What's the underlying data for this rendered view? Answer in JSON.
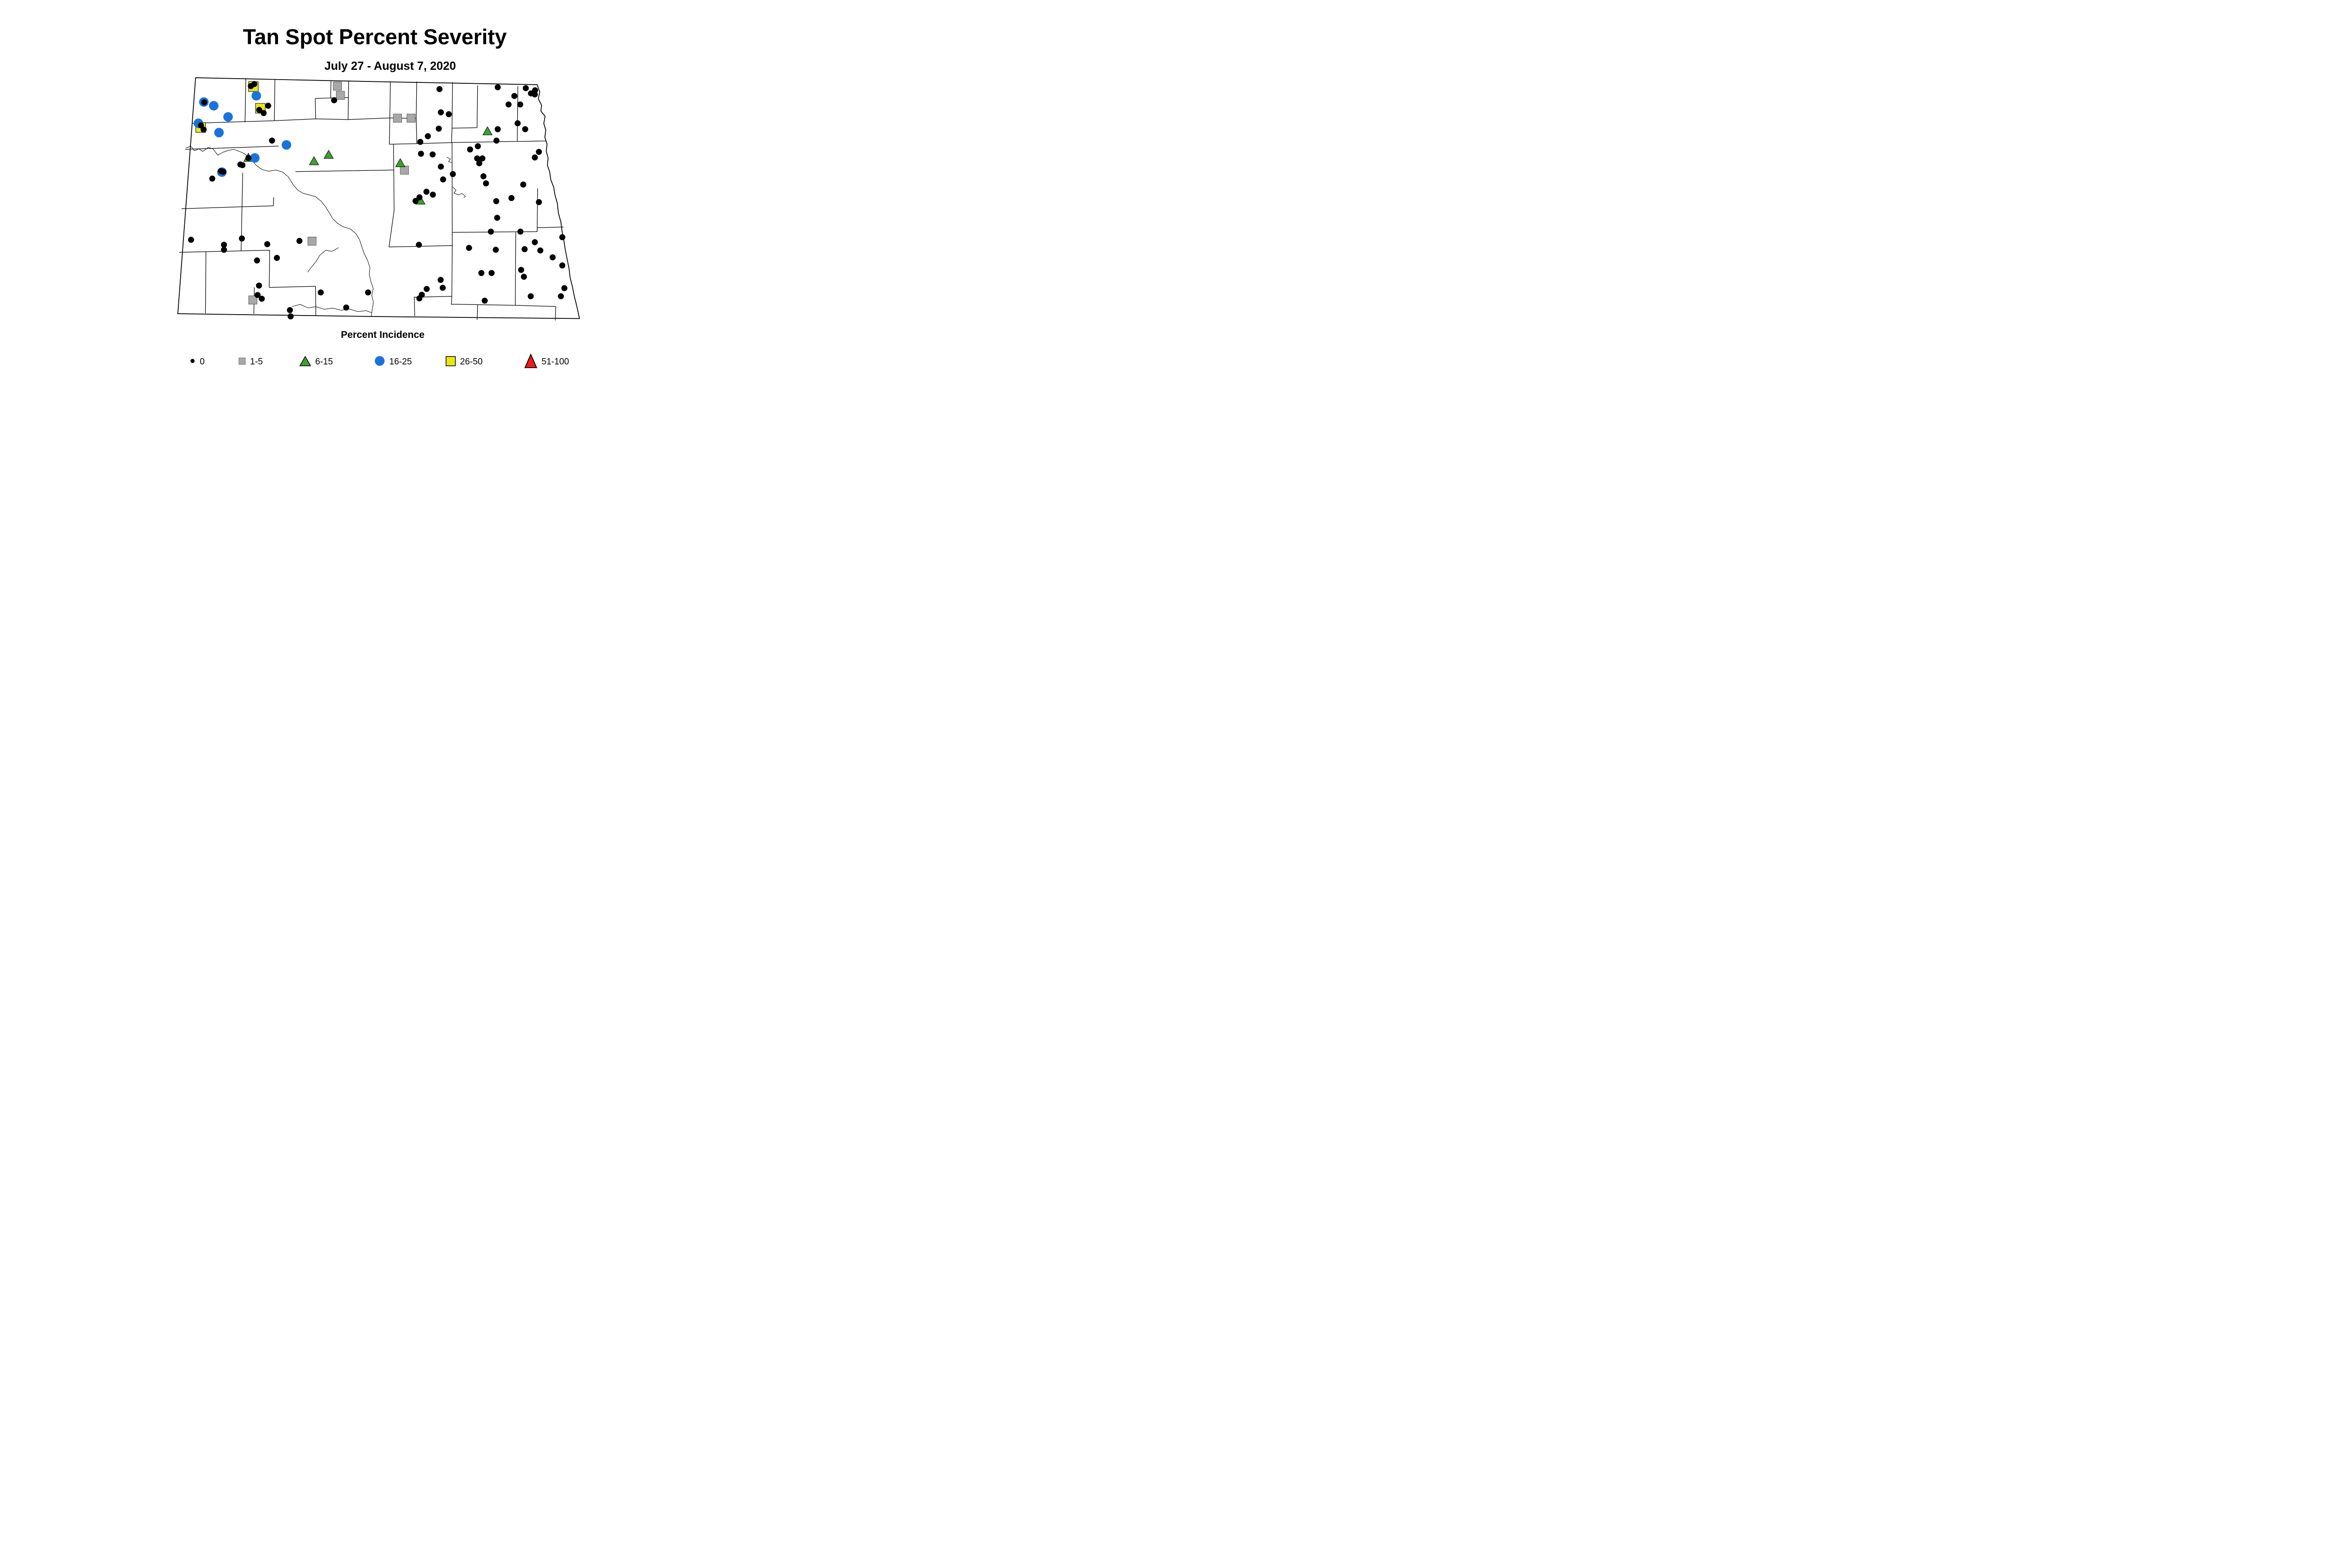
{
  "title": "Tan Spot Percent Severity",
  "subtitle": "July 27 - August 7, 2020",
  "legend": {
    "title": "Percent Incidence",
    "items": [
      {
        "label": "0",
        "marker": "black-dot",
        "color": "#000000"
      },
      {
        "label": "1-5",
        "marker": "gray-square",
        "color": "#a8a8a8"
      },
      {
        "label": "6-15",
        "marker": "green-triangle",
        "color": "#3da02f"
      },
      {
        "label": "16-25",
        "marker": "blue-circle",
        "color": "#1a73dd"
      },
      {
        "label": "26-50",
        "marker": "yellow-square",
        "color": "#e8e715"
      },
      {
        "label": "51-100",
        "marker": "red-triangle",
        "color": "#ee1b1b"
      }
    ]
  },
  "chart_data": {
    "type": "scatter",
    "title": "Tan Spot Percent Severity",
    "subtitle": "July 27 - August 7, 2020",
    "region": "North Dakota county map",
    "legend_title": "Percent Incidence",
    "legend_position": "bottom",
    "coordinate_space": {
      "note": "pixel coordinates of source image",
      "x_range": [
        1450,
        5150
      ],
      "y_range": [
        600,
        2850
      ]
    },
    "series": [
      {
        "name": "26-50",
        "marker": "yellow-square",
        "color": "#e8e715",
        "points": [
          [
            2178,
            744
          ],
          [
            2238,
            931
          ],
          [
            1725,
            1096
          ]
        ]
      },
      {
        "name": "1-5",
        "marker": "gray-square",
        "color": "#a8a8a8",
        "points": [
          [
            2900,
            740
          ],
          [
            2926,
            820
          ],
          [
            3417,
            1016
          ],
          [
            3534,
            1016
          ],
          [
            3477,
            1463
          ],
          [
            2682,
            2074
          ],
          [
            2173,
            2580
          ]
        ]
      },
      {
        "name": "51-100",
        "marker": "red-triangle",
        "color": "#ee1b1b",
        "points": []
      },
      {
        "name": "6-15",
        "marker": "green-triangle",
        "color": "#3da02f",
        "points": [
          [
            2135,
            1356
          ],
          [
            2699,
            1385
          ],
          [
            2825,
            1330
          ],
          [
            3441,
            1402
          ],
          [
            3614,
            1724
          ],
          [
            4191,
            1128
          ]
        ]
      },
      {
        "name": "16-25",
        "marker": "blue-circle",
        "color": "#1a73dd",
        "points": [
          [
            2203,
            823
          ],
          [
            1752,
            877
          ],
          [
            1837,
            909
          ],
          [
            1960,
            1005
          ],
          [
            1705,
            1060
          ],
          [
            1882,
            1140
          ],
          [
            2462,
            1246
          ],
          [
            2190,
            1358
          ],
          [
            1907,
            1480
          ]
        ]
      },
      {
        "name": "0",
        "marker": "black-dot",
        "color": "#000000",
        "points": [
          [
            2156,
            740
          ],
          [
            2186,
            722
          ],
          [
            1755,
            880
          ],
          [
            2305,
            909
          ],
          [
            2228,
            945
          ],
          [
            2266,
            972
          ],
          [
            1727,
            1078
          ],
          [
            1750,
            1114
          ],
          [
            2338,
            1209
          ],
          [
            2135,
            1358
          ],
          [
            2066,
            1414
          ],
          [
            2084,
            1420
          ],
          [
            1899,
            1472
          ],
          [
            1919,
            1477
          ],
          [
            1824,
            1536
          ],
          [
            2872,
            862
          ],
          [
            3778,
            766
          ],
          [
            3790,
            966
          ],
          [
            3858,
            982
          ],
          [
            3772,
            1106
          ],
          [
            3678,
            1171
          ],
          [
            3613,
            1220
          ],
          [
            3619,
            1322
          ],
          [
            3719,
            1328
          ],
          [
            3790,
            1433
          ],
          [
            3809,
            1543
          ],
          [
            3893,
            1497
          ],
          [
            3666,
            1649
          ],
          [
            3721,
            1674
          ],
          [
            3606,
            1697
          ],
          [
            3572,
            1728
          ],
          [
            4279,
            750
          ],
          [
            4520,
            758
          ],
          [
            4600,
            776
          ],
          [
            4565,
            803
          ],
          [
            4598,
            812
          ],
          [
            4422,
            825
          ],
          [
            4372,
            898
          ],
          [
            4472,
            898
          ],
          [
            4450,
            1060
          ],
          [
            4515,
            1111
          ],
          [
            4279,
            1111
          ],
          [
            4268,
            1209
          ],
          [
            4108,
            1257
          ],
          [
            4041,
            1285
          ],
          [
            4102,
            1362
          ],
          [
            4147,
            1362
          ],
          [
            4120,
            1404
          ],
          [
            4156,
            1516
          ],
          [
            4178,
            1577
          ],
          [
            4633,
            1306
          ],
          [
            4598,
            1354
          ],
          [
            4266,
            1730
          ],
          [
            4397,
            1703
          ],
          [
            4498,
            1587
          ],
          [
            4633,
            1738
          ],
          [
            4274,
            1873
          ],
          [
            4220,
            1992
          ],
          [
            4474,
            1992
          ],
          [
            4598,
            2083
          ],
          [
            4834,
            2040
          ],
          [
            4032,
            2132
          ],
          [
            4262,
            2148
          ],
          [
            4510,
            2143
          ],
          [
            4645,
            2154
          ],
          [
            4751,
            2213
          ],
          [
            4834,
            2283
          ],
          [
            4480,
            2321
          ],
          [
            4138,
            2348
          ],
          [
            4226,
            2348
          ],
          [
            4504,
            2380
          ],
          [
            4852,
            2478
          ],
          [
            4563,
            2548
          ],
          [
            4822,
            2548
          ],
          [
            4167,
            2586
          ],
          [
            3601,
            2105
          ],
          [
            3788,
            2407
          ],
          [
            3806,
            2475
          ],
          [
            3668,
            2485
          ],
          [
            3626,
            2535
          ],
          [
            3605,
            2566
          ],
          [
            2757,
            2515
          ],
          [
            3164,
            2515
          ],
          [
            2976,
            2645
          ],
          [
            1642,
            2062
          ],
          [
            2574,
            2072
          ],
          [
            1925,
            2105
          ],
          [
            1925,
            2148
          ],
          [
            2079,
            2051
          ],
          [
            2297,
            2100
          ],
          [
            2380,
            2218
          ],
          [
            2209,
            2240
          ],
          [
            2226,
            2456
          ],
          [
            2214,
            2537
          ],
          [
            2250,
            2569
          ],
          [
            2492,
            2667
          ],
          [
            2498,
            2721
          ]
        ]
      }
    ]
  }
}
